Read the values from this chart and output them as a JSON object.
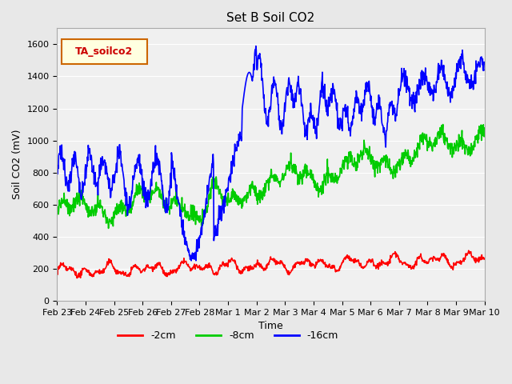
{
  "title": "Set B Soil CO2",
  "xlabel": "Time",
  "ylabel": "Soil CO2 (mV)",
  "legend_label": "TA_soilco2",
  "series_labels": [
    "-2cm",
    "-8cm",
    "-16cm"
  ],
  "series_colors": [
    "#ff0000",
    "#00cc00",
    "#0000ff"
  ],
  "ylim": [
    0,
    1700
  ],
  "yticks": [
    0,
    200,
    400,
    600,
    800,
    1000,
    1200,
    1400,
    1600
  ],
  "xtick_labels": [
    "Feb 23",
    "Feb 24",
    "Feb 25",
    "Feb 26",
    "Feb 27",
    "Feb 28",
    "Mar 1",
    "Mar 2",
    "Mar 3",
    "Mar 4",
    "Mar 5",
    "Mar 6",
    "Mar 7",
    "Mar 8",
    "Mar 9",
    "Mar 10"
  ],
  "bg_color": "#e8e8e8",
  "plot_bg_color": "#f0f0f0",
  "linewidth": 1.2,
  "n_points": 1100,
  "seed": 42
}
